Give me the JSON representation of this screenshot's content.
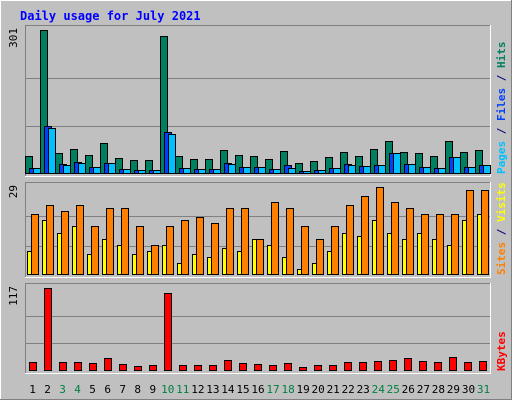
{
  "chart_data": {
    "type": "bar",
    "title": "Daily usage for July 2021",
    "days": [
      "1",
      "2",
      "3",
      "4",
      "5",
      "6",
      "7",
      "8",
      "9",
      "10",
      "11",
      "12",
      "13",
      "14",
      "15",
      "16",
      "17",
      "18",
      "19",
      "20",
      "21",
      "22",
      "23",
      "24",
      "25",
      "26",
      "27",
      "28",
      "29",
      "30",
      "31"
    ],
    "weekend_days": [
      "3",
      "4",
      "10",
      "11",
      "17",
      "18",
      "24",
      "25",
      "31"
    ],
    "panels": [
      {
        "id": "hits",
        "ymax_label": "301",
        "ymax": 301,
        "legend": [
          {
            "text": "Pages",
            "color": "#00c0ff"
          },
          {
            "text": " / ",
            "color": "#000080"
          },
          {
            "text": "Files",
            "color": "#0040ff"
          },
          {
            "text": " / ",
            "color": "#000080"
          },
          {
            "text": "Hits",
            "color": "#008060"
          }
        ],
        "series": [
          {
            "name": "Hits",
            "color": "#008060",
            "values": [
              38,
              301,
              44,
              52,
              40,
              64,
              34,
              30,
              30,
              288,
              38,
              32,
              32,
              50,
              40,
              38,
              32,
              48,
              22,
              28,
              36,
              46,
              38,
              52,
              68,
              46,
              44,
              38,
              70,
              46,
              50
            ]
          },
          {
            "name": "Files",
            "color": "#0040ff",
            "values": [
              12,
              100,
              20,
              26,
              14,
              24,
              10,
              8,
              8,
              88,
              12,
              10,
              10,
              22,
              14,
              14,
              10,
              18,
              6,
              8,
              12,
              20,
              16,
              18,
              44,
              20,
              14,
              12,
              36,
              14,
              18
            ]
          },
          {
            "name": "Pages",
            "color": "#00c0ff",
            "values": [
              12,
              96,
              18,
              24,
              14,
              22,
              10,
              8,
              8,
              84,
              12,
              10,
              10,
              20,
              14,
              14,
              10,
              12,
              6,
              8,
              12,
              18,
              16,
              18,
              44,
              20,
              14,
              12,
              36,
              14,
              18
            ]
          }
        ]
      },
      {
        "id": "visits",
        "ymax_label": "29",
        "ymax": 29,
        "legend": [
          {
            "text": "Sites",
            "color": "#ff8000"
          },
          {
            "text": " / ",
            "color": "#000080"
          },
          {
            "text": "Visits",
            "color": "#ffff00"
          }
        ],
        "series": [
          {
            "name": "Visits",
            "color": "#ffff00",
            "values": [
              8,
              18,
              14,
              16,
              7,
              12,
              10,
              7,
              8,
              10,
              4,
              7,
              6,
              9,
              8,
              12,
              10,
              6,
              2,
              4,
              8,
              14,
              13,
              18,
              14,
              12,
              14,
              12,
              10,
              18,
              20
            ]
          },
          {
            "name": "Sites",
            "color": "#ff8000",
            "values": [
              20,
              23,
              21,
              23,
              16,
              22,
              22,
              16,
              10,
              16,
              18,
              19,
              17,
              22,
              22,
              12,
              24,
              22,
              16,
              12,
              16,
              23,
              26,
              29,
              24,
              22,
              20,
              20,
              20,
              28,
              28
            ]
          }
        ]
      },
      {
        "id": "kbytes",
        "ymax_label": "117",
        "ymax": 117,
        "legend": [
          {
            "text": "KBytes",
            "color": "#ff0000"
          }
        ],
        "series": [
          {
            "name": "KBytes",
            "color": "#ff0000",
            "values": [
              12,
              117,
              12,
              13,
              11,
              18,
              10,
              7,
              8,
              110,
              9,
              9,
              9,
              16,
              11,
              10,
              9,
              11,
              5,
              8,
              9,
              12,
              12,
              14,
              16,
              18,
              14,
              13,
              20,
              12,
              14
            ]
          }
        ]
      }
    ]
  }
}
